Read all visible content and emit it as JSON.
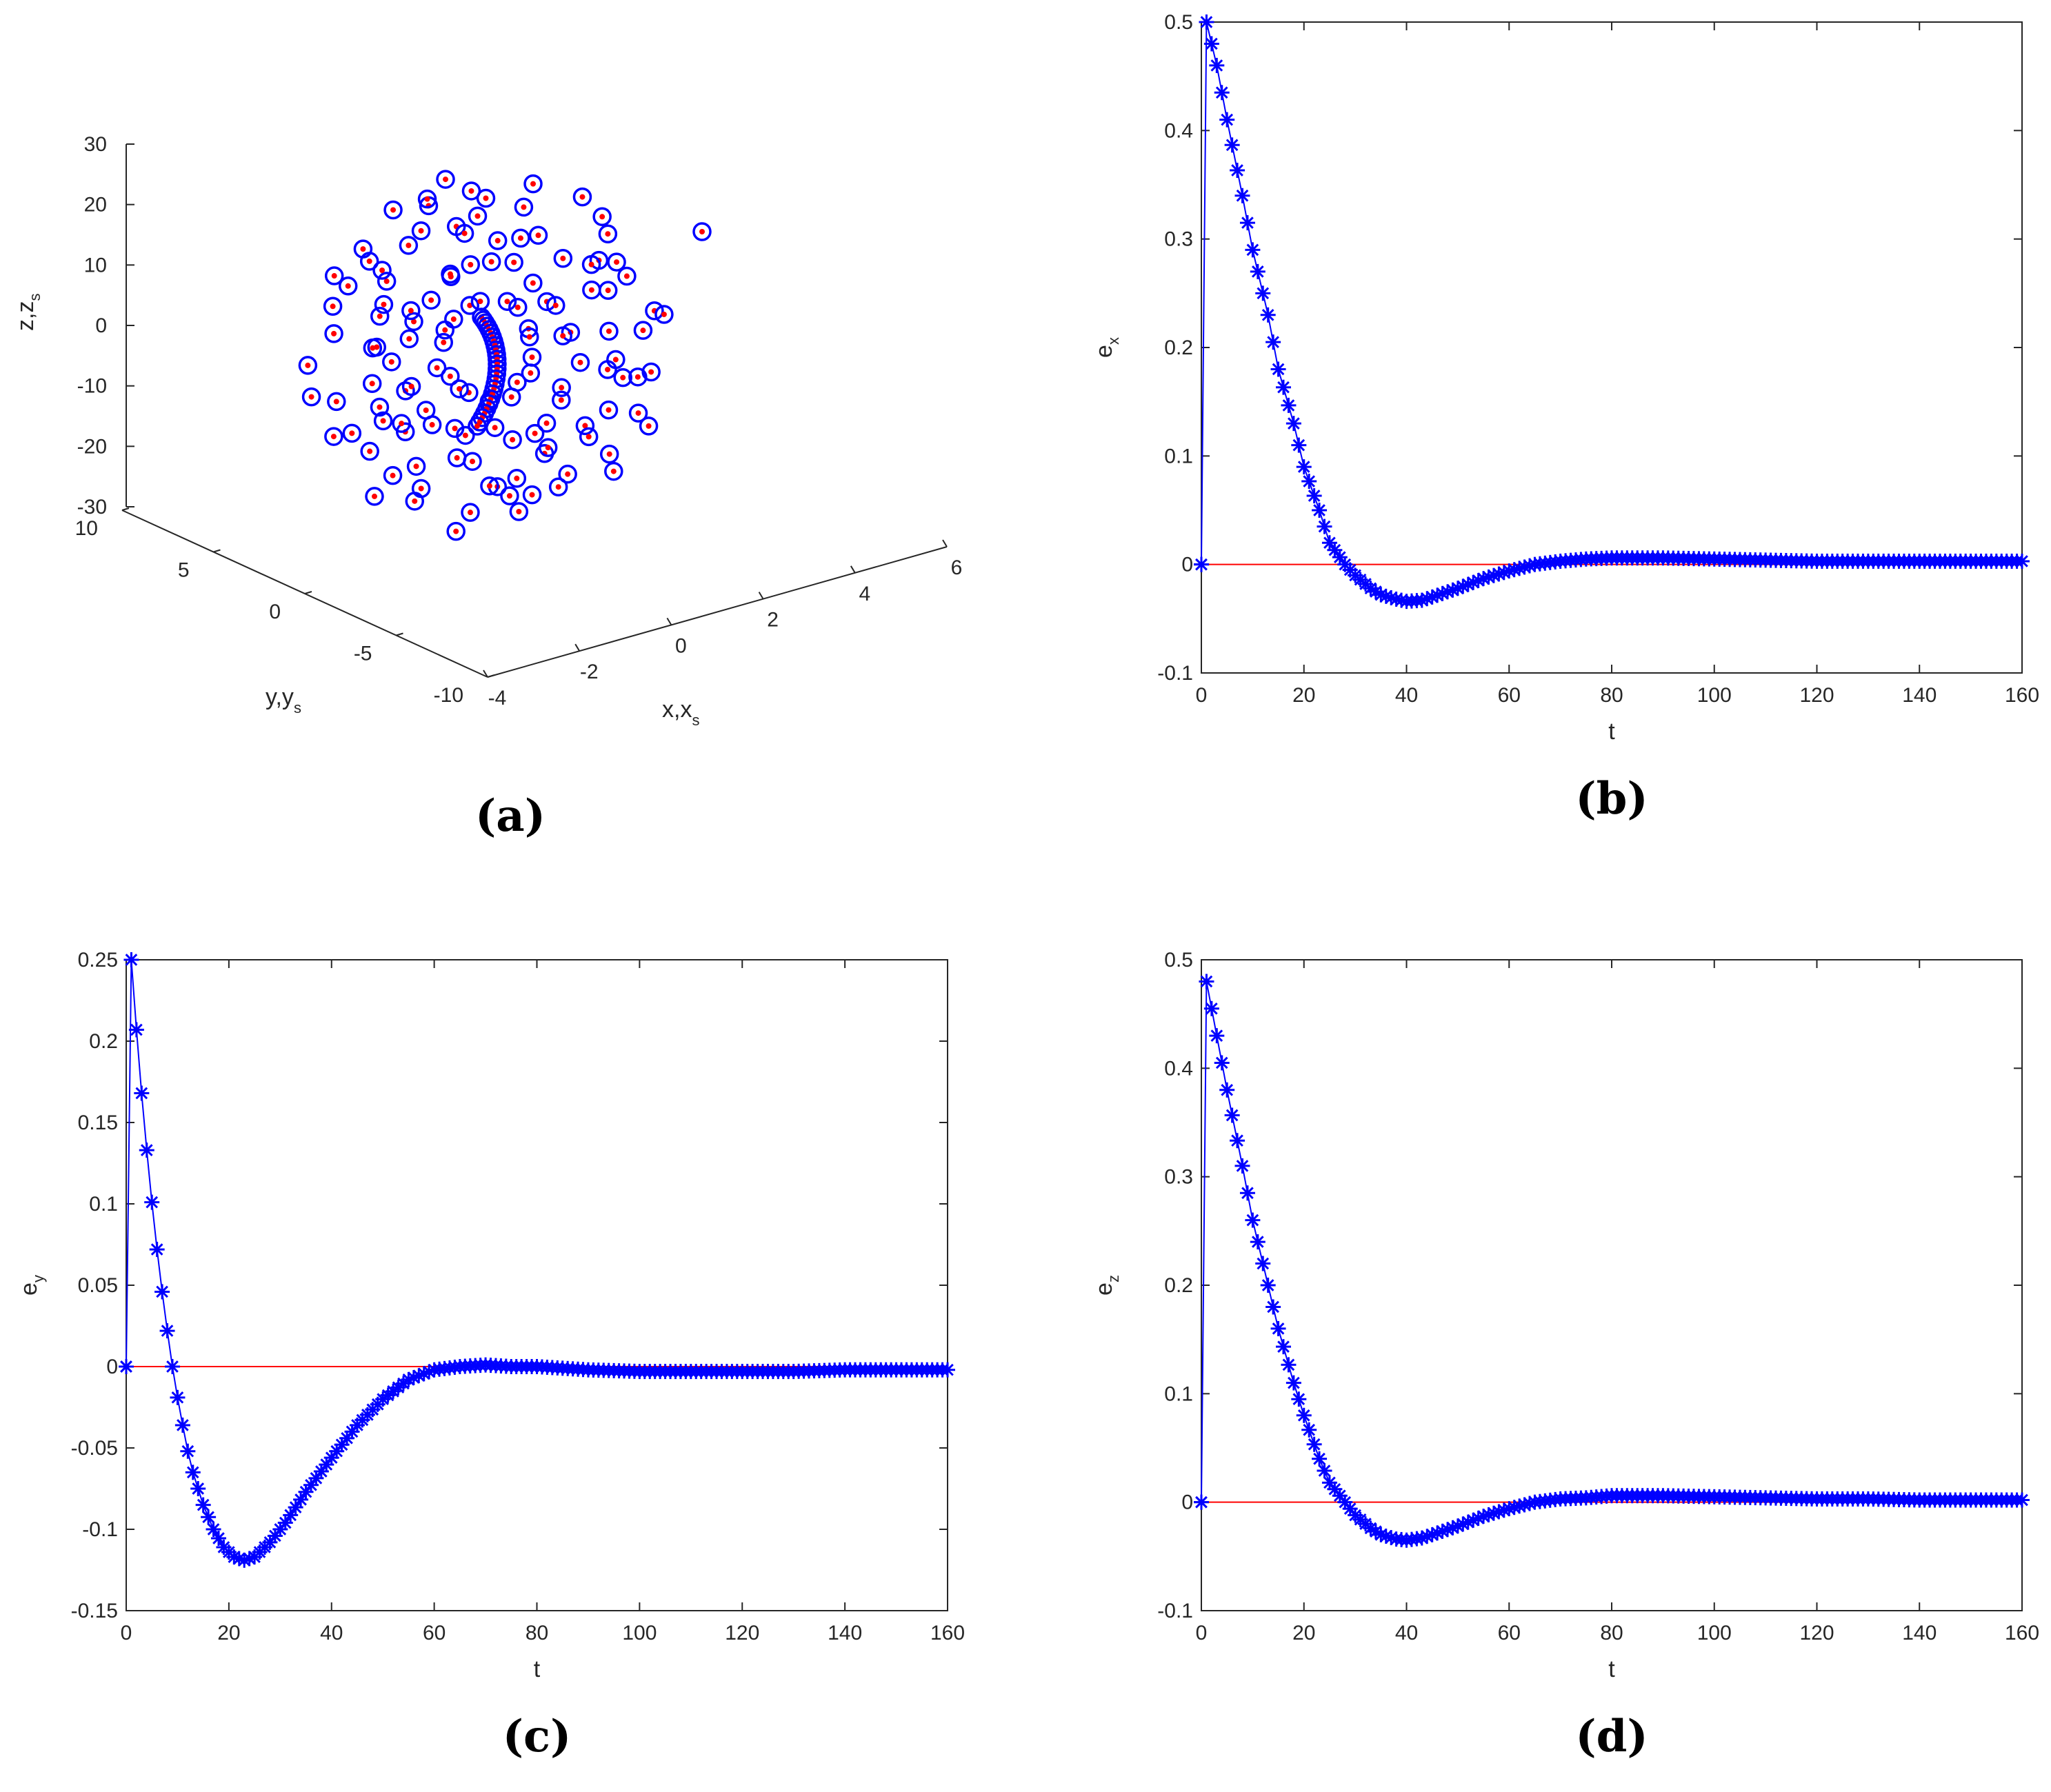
{
  "chart_data": [
    {
      "id": "a",
      "type": "scatter3d",
      "panel_label": "(a)",
      "xlabel": "x,x",
      "xlabel_sub": "s",
      "ylabel": "y,y",
      "ylabel_sub": "s",
      "zlabel": "z,z",
      "zlabel_sub": "s",
      "xlim": [
        -4,
        6
      ],
      "ylim": [
        -10,
        10
      ],
      "zlim": [
        -30,
        30
      ],
      "xticks": [
        "-4",
        "-2",
        "0",
        "2",
        "4",
        "6"
      ],
      "yticks": [
        "-10",
        "-5",
        "0",
        "5",
        "10"
      ],
      "zticks": [
        "-30",
        "-20",
        "-10",
        "0",
        "10",
        "20",
        "30"
      ],
      "series": [
        {
          "marker": "o",
          "color": "#0000ff"
        },
        {
          "marker": ".",
          "color": "#ff0000"
        }
      ],
      "grid": false
    },
    {
      "id": "b",
      "type": "line",
      "panel_label": "(b)",
      "xlabel": "t",
      "ylabel": "e",
      "ylabel_sub": "x",
      "xlim": [
        0,
        160
      ],
      "ylim": [
        -0.1,
        0.5
      ],
      "xticks": [
        "0",
        "20",
        "40",
        "60",
        "80",
        "100",
        "120",
        "140",
        "160"
      ],
      "yticks": [
        "-0.1",
        "0",
        "0.1",
        "0.2",
        "0.3",
        "0.4",
        "0.5"
      ],
      "reference_line": {
        "y": 0,
        "color": "#ff0000"
      },
      "series": [
        {
          "color": "#0000ff",
          "marker": "*",
          "points": [
            [
              0,
              0
            ],
            [
              1,
              0.5
            ],
            [
              3,
              0.46
            ],
            [
              5,
              0.41
            ],
            [
              8,
              0.34
            ],
            [
              10,
              0.29
            ],
            [
              13,
              0.23
            ],
            [
              15,
              0.18
            ],
            [
              18,
              0.13
            ],
            [
              20,
              0.09
            ],
            [
              23,
              0.05
            ],
            [
              25,
              0.02
            ],
            [
              28,
              0.0
            ],
            [
              30,
              -0.01
            ],
            [
              33,
              -0.022
            ],
            [
              35,
              -0.028
            ],
            [
              38,
              -0.032
            ],
            [
              40,
              -0.034
            ],
            [
              43,
              -0.033
            ],
            [
              45,
              -0.03
            ],
            [
              50,
              -0.022
            ],
            [
              55,
              -0.013
            ],
            [
              60,
              -0.006
            ],
            [
              65,
              0.0
            ],
            [
              70,
              0.003
            ],
            [
              75,
              0.005
            ],
            [
              80,
              0.006
            ],
            [
              90,
              0.006
            ],
            [
              100,
              0.005
            ],
            [
              110,
              0.004
            ],
            [
              120,
              0.003
            ],
            [
              130,
              0.003
            ],
            [
              140,
              0.003
            ],
            [
              150,
              0.003
            ],
            [
              160,
              0.003
            ]
          ]
        }
      ],
      "grid": false
    },
    {
      "id": "c",
      "type": "line",
      "panel_label": "(c)",
      "xlabel": "t",
      "ylabel": "e",
      "ylabel_sub": "y",
      "xlim": [
        0,
        160
      ],
      "ylim": [
        -0.15,
        0.25
      ],
      "xticks": [
        "0",
        "20",
        "40",
        "60",
        "80",
        "100",
        "120",
        "140",
        "160"
      ],
      "yticks": [
        "-0.15",
        "-0.1",
        "-0.05",
        "0",
        "0.05",
        "0.1",
        "0.15",
        "0.2",
        "0.25"
      ],
      "reference_line": {
        "y": 0,
        "color": "#ff0000"
      },
      "series": [
        {
          "color": "#0000ff",
          "marker": "*",
          "points": [
            [
              0,
              0
            ],
            [
              1,
              0.25
            ],
            [
              2,
              0.207
            ],
            [
              3,
              0.168
            ],
            [
              4,
              0.133
            ],
            [
              5,
              0.101
            ],
            [
              6,
              0.072
            ],
            [
              7,
              0.046
            ],
            [
              8,
              0.022
            ],
            [
              9,
              0.0
            ],
            [
              10,
              -0.019
            ],
            [
              11,
              -0.036
            ],
            [
              12,
              -0.052
            ],
            [
              13,
              -0.065
            ],
            [
              15,
              -0.085
            ],
            [
              17,
              -0.1
            ],
            [
              19,
              -0.111
            ],
            [
              21,
              -0.117
            ],
            [
              23,
              -0.119
            ],
            [
              25,
              -0.117
            ],
            [
              28,
              -0.108
            ],
            [
              31,
              -0.096
            ],
            [
              35,
              -0.077
            ],
            [
              40,
              -0.056
            ],
            [
              45,
              -0.036
            ],
            [
              50,
              -0.02
            ],
            [
              55,
              -0.008
            ],
            [
              60,
              -0.002
            ],
            [
              65,
              0.0
            ],
            [
              70,
              0.001
            ],
            [
              75,
              0.0
            ],
            [
              80,
              0.0
            ],
            [
              90,
              -0.002
            ],
            [
              100,
              -0.003
            ],
            [
              110,
              -0.003
            ],
            [
              120,
              -0.003
            ],
            [
              130,
              -0.003
            ],
            [
              140,
              -0.002
            ],
            [
              150,
              -0.002
            ],
            [
              160,
              -0.002
            ]
          ]
        }
      ],
      "grid": false
    },
    {
      "id": "d",
      "type": "line",
      "panel_label": "(d)",
      "xlabel": "t",
      "ylabel": "e",
      "ylabel_sub": "z",
      "xlim": [
        0,
        160
      ],
      "ylim": [
        -0.1,
        0.5
      ],
      "xticks": [
        "0",
        "20",
        "40",
        "60",
        "80",
        "100",
        "120",
        "140",
        "160"
      ],
      "yticks": [
        "-0.1",
        "0",
        "0.1",
        "0.2",
        "0.3",
        "0.4",
        "0.5"
      ],
      "reference_line": {
        "y": 0,
        "color": "#ff0000"
      },
      "series": [
        {
          "color": "#0000ff",
          "marker": "*",
          "points": [
            [
              0,
              0
            ],
            [
              1,
              0.48
            ],
            [
              3,
              0.43
            ],
            [
              5,
              0.38
            ],
            [
              8,
              0.31
            ],
            [
              10,
              0.26
            ],
            [
              13,
              0.2
            ],
            [
              15,
              0.16
            ],
            [
              18,
              0.11
            ],
            [
              20,
              0.08
            ],
            [
              23,
              0.04
            ],
            [
              25,
              0.018
            ],
            [
              28,
              0.0
            ],
            [
              30,
              -0.012
            ],
            [
              33,
              -0.024
            ],
            [
              35,
              -0.03
            ],
            [
              38,
              -0.034
            ],
            [
              40,
              -0.035
            ],
            [
              43,
              -0.033
            ],
            [
              45,
              -0.03
            ],
            [
              50,
              -0.022
            ],
            [
              55,
              -0.013
            ],
            [
              60,
              -0.006
            ],
            [
              65,
              0.0
            ],
            [
              70,
              0.003
            ],
            [
              75,
              0.004
            ],
            [
              80,
              0.006
            ],
            [
              90,
              0.006
            ],
            [
              100,
              0.005
            ],
            [
              110,
              0.004
            ],
            [
              120,
              0.003
            ],
            [
              130,
              0.003
            ],
            [
              140,
              0.002
            ],
            [
              150,
              0.002
            ],
            [
              160,
              0.002
            ]
          ]
        }
      ],
      "grid": false
    }
  ]
}
